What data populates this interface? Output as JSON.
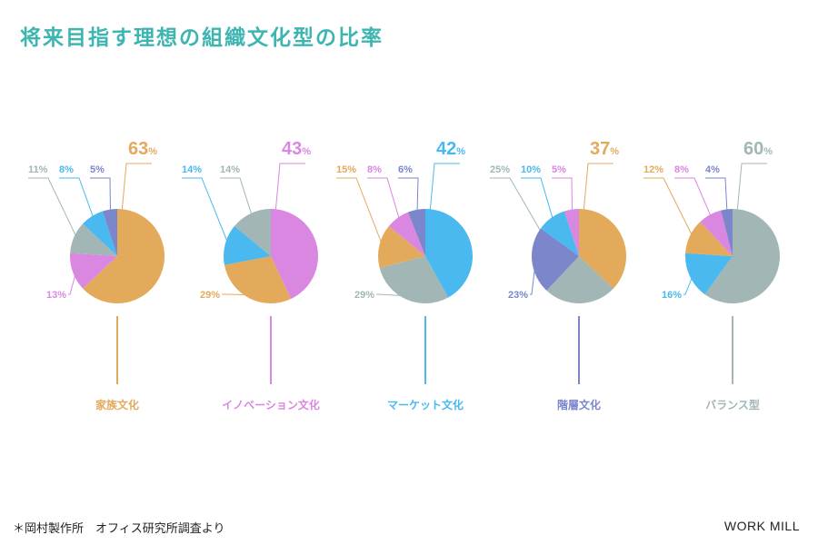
{
  "title": "将来目指す理想の組織文化型の比率",
  "footnote": "＊岡村製作所　オフィス研究所調査より",
  "brand": "WORK MILL",
  "colors": {
    "family": "#e3aa5c",
    "innovation": "#d987e0",
    "market": "#49b9ef",
    "hierarchy": "#7b86cb",
    "balance": "#a2b6b6",
    "title": "#3db5b0"
  },
  "chart_data": [
    {
      "type": "pie",
      "title": "家族文化",
      "title_color": "#e3aa5c",
      "slices": [
        {
          "label": "63",
          "unit": "%",
          "value": 63,
          "color": "#e3aa5c",
          "label_color": "#e3aa5c",
          "emphasis": true
        },
        {
          "label": "13%",
          "value": 13,
          "color": "#d987e0",
          "label_color": "#d987e0"
        },
        {
          "label": "11%",
          "value": 11,
          "color": "#a2b6b6",
          "label_color": "#a2b6b6"
        },
        {
          "label": "8%",
          "value": 8,
          "color": "#49b9ef",
          "label_color": "#49b9ef"
        },
        {
          "label": "5%",
          "value": 5,
          "color": "#7b86cb",
          "label_color": "#7b86cb"
        }
      ]
    },
    {
      "type": "pie",
      "title": "イノベーション文化",
      "title_color": "#d987e0",
      "slices": [
        {
          "label": "43",
          "unit": "%",
          "value": 43,
          "color": "#d987e0",
          "label_color": "#d987e0",
          "emphasis": true
        },
        {
          "label": "29%",
          "value": 29,
          "color": "#e3aa5c",
          "label_color": "#e3aa5c"
        },
        {
          "label": "14%",
          "value": 14,
          "color": "#49b9ef",
          "label_color": "#49b9ef"
        },
        {
          "label": "14%",
          "value": 14,
          "color": "#a2b6b6",
          "label_color": "#a2b6b6"
        }
      ]
    },
    {
      "type": "pie",
      "title": "マーケット文化",
      "title_color": "#49b9ef",
      "slices": [
        {
          "label": "42",
          "unit": "%",
          "value": 42,
          "color": "#49b9ef",
          "label_color": "#49b9ef",
          "emphasis": true
        },
        {
          "label": "29%",
          "value": 29,
          "color": "#a2b6b6",
          "label_color": "#a2b6b6"
        },
        {
          "label": "15%",
          "value": 15,
          "color": "#e3aa5c",
          "label_color": "#e3aa5c"
        },
        {
          "label": "8%",
          "value": 8,
          "color": "#d987e0",
          "label_color": "#d987e0"
        },
        {
          "label": "6%",
          "value": 6,
          "color": "#7b86cb",
          "label_color": "#7b86cb"
        }
      ]
    },
    {
      "type": "pie",
      "title": "階層文化",
      "title_color": "#7b86cb",
      "slices": [
        {
          "label": "37",
          "unit": "%",
          "value": 37,
          "color": "#e3aa5c",
          "label_color": "#e3aa5c",
          "emphasis": true
        },
        {
          "label": "25%",
          "value": 25,
          "color": "#a2b6b6",
          "label_color": "#a2b6b6"
        },
        {
          "label": "23%",
          "value": 23,
          "color": "#7b86cb",
          "label_color": "#7b86cb"
        },
        {
          "label": "10%",
          "value": 10,
          "color": "#49b9ef",
          "label_color": "#49b9ef"
        },
        {
          "label": "5%",
          "value": 5,
          "color": "#d987e0",
          "label_color": "#d987e0"
        }
      ]
    },
    {
      "type": "pie",
      "title": "バランス型",
      "title_color": "#a2b6b6",
      "slices": [
        {
          "label": "60",
          "unit": "%",
          "value": 60,
          "color": "#a2b6b6",
          "label_color": "#a2b6b6",
          "emphasis": true
        },
        {
          "label": "16%",
          "value": 16,
          "color": "#49b9ef",
          "label_color": "#49b9ef"
        },
        {
          "label": "12%",
          "value": 12,
          "color": "#e3aa5c",
          "label_color": "#e3aa5c"
        },
        {
          "label": "8%",
          "value": 8,
          "color": "#d987e0",
          "label_color": "#d987e0"
        },
        {
          "label": "4%",
          "value": 4,
          "color": "#7b86cb",
          "label_color": "#7b86cb"
        }
      ]
    }
  ]
}
